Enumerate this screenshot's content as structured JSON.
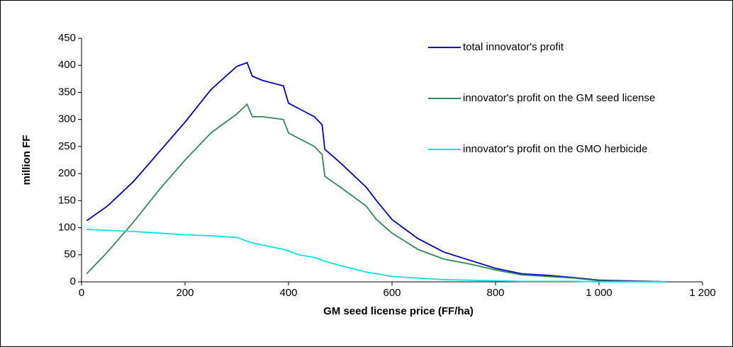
{
  "chart_data": {
    "type": "line",
    "x_label": "GM seed license price (FF/ha)",
    "y_label": "million FF",
    "x": [
      10,
      50,
      100,
      150,
      200,
      250,
      300,
      320,
      330,
      350,
      390,
      400,
      420,
      450,
      465,
      470,
      500,
      550,
      570,
      600,
      650,
      700,
      750,
      800,
      850,
      900,
      950,
      1000,
      1050,
      1100,
      1130
    ],
    "series": [
      {
        "name": "total innovator's profit",
        "color": "#0000cc",
        "values": [
          113,
          140,
          185,
          240,
          295,
          355,
          398,
          405,
          380,
          372,
          362,
          330,
          320,
          305,
          290,
          245,
          220,
          175,
          150,
          115,
          80,
          55,
          40,
          25,
          15,
          12,
          8,
          3,
          2,
          1,
          0
        ]
      },
      {
        "name": "innovator's profit on the GM seed license",
        "color": "#2e8b57",
        "values": [
          15,
          55,
          110,
          170,
          225,
          275,
          310,
          328,
          305,
          305,
          300,
          275,
          265,
          250,
          235,
          195,
          175,
          140,
          115,
          90,
          60,
          42,
          33,
          22,
          13,
          10,
          7,
          2,
          1,
          1,
          0
        ]
      },
      {
        "name": "innovator's profit on the GMO herbicide",
        "color": "#00e5e5",
        "values": [
          97,
          95,
          93,
          90,
          87,
          85,
          82,
          75,
          72,
          68,
          60,
          57,
          50,
          45,
          40,
          38,
          30,
          18,
          15,
          10,
          7,
          4,
          3,
          2,
          1,
          1,
          1,
          0,
          0,
          0,
          0
        ]
      }
    ],
    "xlim": [
      0,
      1200
    ],
    "xticks": [
      0,
      200,
      400,
      600,
      800,
      {
        "value": 1000,
        "label": "1 000"
      },
      {
        "value": 1200,
        "label": "1 200"
      }
    ],
    "ylim": [
      0,
      450
    ],
    "yticks": [
      0,
      50,
      100,
      150,
      200,
      250,
      300,
      350,
      400,
      450
    ],
    "legend": "upper right"
  }
}
